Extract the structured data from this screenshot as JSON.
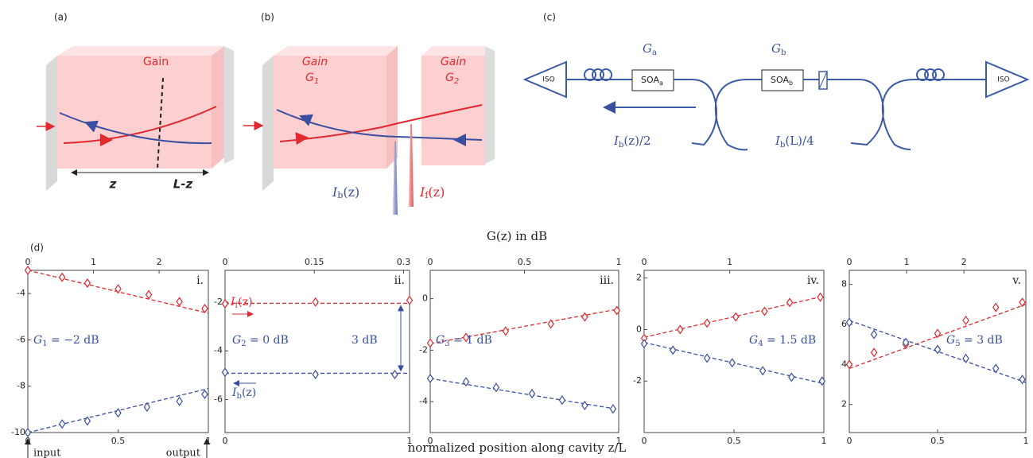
{
  "panel_labels": [
    "(a)",
    "(b)",
    "(c)",
    "(d)"
  ],
  "a": {
    "gain": "Gain",
    "z": "z",
    "lz": "L-z"
  },
  "b": {
    "gain1": "Gain",
    "g1": {
      "main": "G",
      "sub": "1"
    },
    "gain2": "Gain",
    "g2": {
      "main": "G",
      "sub": "2"
    },
    "ib": {
      "main": "I",
      "sub": "b",
      "rest": "(z)"
    },
    "if": {
      "main": "I",
      "sub": "f",
      "rest": "(z)"
    }
  },
  "c": {
    "ga": {
      "main": "G",
      "sub": "a"
    },
    "gb": {
      "main": "G",
      "sub": "b"
    },
    "soa_a": {
      "main": "SOA",
      "sub": "a"
    },
    "soa_b": {
      "main": "SOA",
      "sub": "b"
    },
    "iso1": "ISO",
    "iso2": "ISO",
    "out1": {
      "main": "I",
      "sub": "b",
      "rest": "(z)/2"
    },
    "out2": {
      "main": "I",
      "sub": "b",
      "rest": "(L)/4"
    }
  },
  "d": {
    "top_label": "G(z) in dB",
    "x_label": "normalized position along cavity z/L",
    "input": "input",
    "output": "output"
  },
  "chart_data": [
    {
      "type": "line",
      "label": "i.",
      "xlim": [
        0,
        1
      ],
      "xticks": [
        0,
        0.5,
        1
      ],
      "x2lim": [
        0,
        2.75
      ],
      "x2ticks": [
        0,
        1,
        2
      ],
      "ylim": [
        -10,
        -3
      ],
      "yticks": [
        -10,
        -8,
        -6,
        -4
      ],
      "series": [
        {
          "color": "#e0282e",
          "x": [
            0,
            0.19,
            0.33,
            0.5,
            0.67,
            0.84,
            0.98
          ],
          "values": [
            -3.0,
            -3.3,
            -3.55,
            -3.8,
            -4.05,
            -4.35,
            -4.65
          ],
          "fit_x": [
            0,
            1
          ],
          "fit_values": [
            -3.0,
            -4.85
          ]
        },
        {
          "color": "#3a4fa0",
          "x": [
            0,
            0.19,
            0.33,
            0.5,
            0.66,
            0.84,
            0.98
          ],
          "values": [
            -10,
            -9.63,
            -9.5,
            -9.15,
            -8.9,
            -8.65,
            -8.35
          ],
          "fit_x": [
            0,
            1
          ],
          "fit_values": [
            -10,
            -8.1
          ]
        }
      ],
      "annotations": [
        {
          "main": "G",
          "sub": "1",
          "rest": " = −2 dB",
          "color": "#3a4fa0"
        }
      ]
    },
    {
      "type": "line",
      "label": "ii.",
      "xlim": [
        0,
        1
      ],
      "xticks": [
        0,
        1
      ],
      "x2lim": [
        0,
        0.31
      ],
      "x2ticks": [
        0,
        0.15,
        0.3
      ],
      "ylim": [
        -7.35,
        -0.7
      ],
      "yticks": [
        -6,
        -4,
        -2
      ],
      "series": [
        {
          "color": "#e0282e",
          "x": [
            0,
            0.49,
            1
          ],
          "values": [
            -2.07,
            -2.0,
            -1.93
          ],
          "fit_x": [
            0,
            1
          ],
          "fit_values": [
            -2.05,
            -2.05
          ]
        },
        {
          "color": "#3a4fa0",
          "x": [
            0,
            0.49,
            0.92
          ],
          "values": [
            -4.88,
            -4.97,
            -4.97
          ],
          "fit_x": [
            0,
            1
          ],
          "fit_values": [
            -4.92,
            -4.92
          ]
        }
      ],
      "annotations": [
        {
          "main": "I",
          "sub": "f",
          "rest": "(z)",
          "color": "#e0282e"
        },
        {
          "main": "G",
          "sub": "2",
          "rest": " = 0 dB",
          "color": "#3a4fa0"
        },
        {
          "main": "3 dB",
          "color": "#3a4fa0"
        },
        {
          "main": "I",
          "sub": "b",
          "rest": "(z)",
          "color": "#3a4fa0"
        }
      ]
    },
    {
      "type": "line",
      "label": "iii.",
      "xlim": [
        0,
        1
      ],
      "xticks": [
        0,
        1
      ],
      "x2lim": [
        0,
        1
      ],
      "x2ticks": [
        0,
        0.5,
        1
      ],
      "ylim": [
        -5.2,
        1.1
      ],
      "yticks": [
        -4,
        -2,
        0
      ],
      "series": [
        {
          "color": "#e0282e",
          "x": [
            0,
            0.19,
            0.4,
            0.64,
            0.82,
            0.99
          ],
          "values": [
            -1.72,
            -1.51,
            -1.26,
            -0.98,
            -0.71,
            -0.46
          ],
          "fit_x": [
            0,
            1
          ],
          "fit_values": [
            -1.75,
            -0.4
          ]
        },
        {
          "color": "#3a4fa0",
          "x": [
            0,
            0.19,
            0.35,
            0.54,
            0.7,
            0.82,
            0.97
          ],
          "values": [
            -3.1,
            -3.23,
            -3.45,
            -3.69,
            -3.94,
            -4.15,
            -4.28
          ],
          "fit_x": [
            0,
            1
          ],
          "fit_values": [
            -3.1,
            -4.3
          ]
        }
      ],
      "annotations": [
        {
          "main": "G",
          "sub": "3",
          "rest": " = 1 dB",
          "color": "#3a4fa0"
        }
      ]
    },
    {
      "type": "line",
      "label": "iv.",
      "xlim": [
        0,
        1
      ],
      "xticks": [
        0,
        0.5,
        1
      ],
      "x2lim": [
        0,
        2.1
      ],
      "x2ticks": [
        0,
        1
      ],
      "ylim": [
        -4,
        2.3
      ],
      "yticks": [
        -2,
        0,
        2
      ],
      "series": [
        {
          "color": "#e0282e",
          "x": [
            0,
            0.2,
            0.35,
            0.51,
            0.67,
            0.81,
            0.98
          ],
          "values": [
            -0.34,
            0,
            0.25,
            0.49,
            0.71,
            1.05,
            1.26
          ],
          "fit_x": [
            0,
            1
          ],
          "fit_values": [
            -0.3,
            1.3
          ]
        },
        {
          "color": "#3a4fa0",
          "x": [
            0,
            0.16,
            0.35,
            0.49,
            0.66,
            0.82,
            0.99
          ],
          "values": [
            -0.55,
            -0.8,
            -1.11,
            -1.29,
            -1.6,
            -1.85,
            -2.0
          ],
          "fit_x": [
            0,
            1
          ],
          "fit_values": [
            -0.5,
            -2.1
          ]
        }
      ],
      "annotations": [
        {
          "main": "G",
          "sub": "4",
          "rest": " = 1.5 dB",
          "color": "#3a4fa0"
        }
      ]
    },
    {
      "type": "line",
      "label": "v.",
      "xlim": [
        0,
        1
      ],
      "xticks": [
        0,
        0.5,
        1
      ],
      "x2lim": [
        0,
        3.08
      ],
      "x2ticks": [
        0,
        1,
        2
      ],
      "ylim": [
        0.6,
        8.7
      ],
      "yticks": [
        2,
        4,
        6,
        8
      ],
      "series": [
        {
          "color": "#e0282e",
          "x": [
            0,
            0.14,
            0.32,
            0.5,
            0.66,
            0.83,
            0.98
          ],
          "values": [
            4.0,
            4.6,
            5.0,
            5.55,
            6.2,
            6.85,
            7.1
          ],
          "fit_x": [
            0,
            1
          ],
          "fit_values": [
            3.8,
            7.0
          ]
        },
        {
          "color": "#3a4fa0",
          "x": [
            0,
            0.14,
            0.32,
            0.5,
            0.66,
            0.83,
            0.98
          ],
          "values": [
            6.1,
            5.5,
            5.1,
            4.75,
            4.3,
            3.8,
            3.25
          ],
          "fit_x": [
            0,
            1
          ],
          "fit_values": [
            6.2,
            3.1
          ]
        }
      ],
      "annotations": [
        {
          "main": "G",
          "sub": "5",
          "rest": " = 3 dB",
          "color": "#3a4fa0"
        }
      ]
    }
  ]
}
